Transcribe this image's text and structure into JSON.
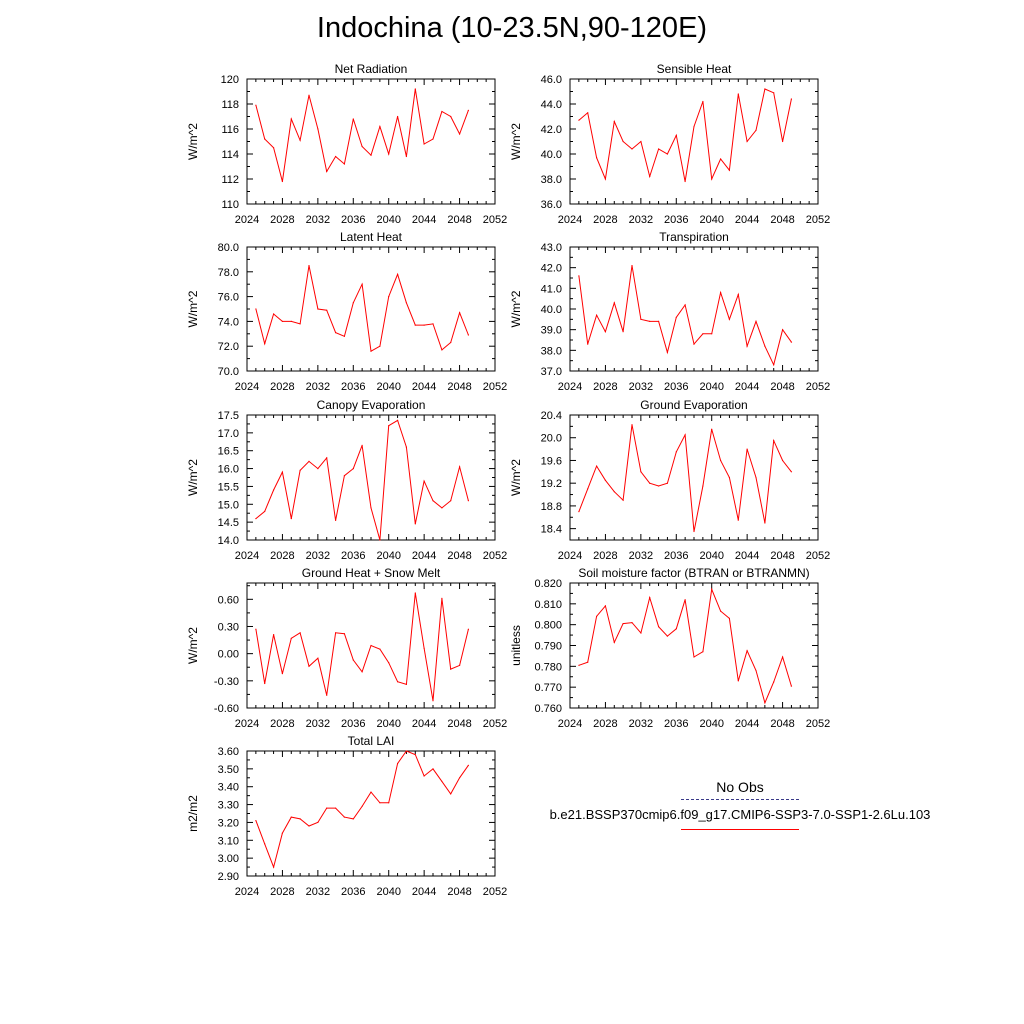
{
  "title": "Indochina (10-23.5N,90-120E)",
  "legend": {
    "items": [
      {
        "label": "No Obs",
        "color": "#3a3a8a",
        "style": "dashed"
      },
      {
        "label": "b.e21.BSSP370cmip6.f09_g17.CMIP6-SSP3-7.0-SSP1-2.6Lu.103",
        "color": "#ff0000",
        "style": "solid"
      }
    ]
  },
  "chart_data": [
    {
      "type": "line",
      "title": "Net Radiation",
      "ylabel": "W/m^2",
      "xlim": [
        2024,
        2052
      ],
      "ylim": [
        110,
        120
      ],
      "xticks": [
        "2024",
        "2028",
        "2032",
        "2036",
        "2040",
        "2044",
        "2048",
        "2052"
      ],
      "yticks": [
        "110",
        "112",
        "114",
        "116",
        "118",
        "120"
      ],
      "series": [
        {
          "color": "#ff0000",
          "x": [
            2025,
            2026,
            2027,
            2028,
            2029,
            2030,
            2031,
            2032,
            2033,
            2034,
            2035,
            2036,
            2037,
            2038,
            2039,
            2040,
            2041,
            2042,
            2043,
            2044,
            2045,
            2046,
            2047,
            2048,
            2049
          ],
          "values": [
            117.9,
            115.2,
            114.5,
            111.8,
            116.8,
            115.1,
            118.7,
            116.0,
            112.6,
            113.8,
            113.2,
            116.8,
            114.6,
            113.9,
            116.2,
            114.0,
            117.0,
            113.8,
            119.2,
            114.8,
            115.2,
            117.4,
            117.0,
            115.6,
            117.5
          ]
        }
      ]
    },
    {
      "type": "line",
      "title": "Sensible Heat",
      "ylabel": "W/m^2",
      "xlim": [
        2024,
        2052
      ],
      "ylim": [
        36,
        46
      ],
      "xticks": [
        "2024",
        "2028",
        "2032",
        "2036",
        "2040",
        "2044",
        "2048",
        "2052"
      ],
      "yticks": [
        "36.0",
        "38.0",
        "40.0",
        "42.0",
        "44.0",
        "46.0"
      ],
      "series": [
        {
          "color": "#ff0000",
          "x": [
            2025,
            2026,
            2027,
            2028,
            2029,
            2030,
            2031,
            2032,
            2033,
            2034,
            2035,
            2036,
            2037,
            2038,
            2039,
            2040,
            2041,
            2042,
            2043,
            2044,
            2045,
            2046,
            2047,
            2048,
            2049
          ],
          "values": [
            42.7,
            43.3,
            39.7,
            38.0,
            42.6,
            41.0,
            40.4,
            41.0,
            38.2,
            40.4,
            40.0,
            41.5,
            37.8,
            42.2,
            44.2,
            38.0,
            39.6,
            38.7,
            44.8,
            41.0,
            41.9,
            45.2,
            44.9,
            41.0,
            44.4
          ]
        }
      ]
    },
    {
      "type": "line",
      "title": "Latent Heat",
      "ylabel": "W/m^2",
      "xlim": [
        2024,
        2052
      ],
      "ylim": [
        70,
        80
      ],
      "xticks": [
        "2024",
        "2028",
        "2032",
        "2036",
        "2040",
        "2044",
        "2048",
        "2052"
      ],
      "yticks": [
        "70.0",
        "72.0",
        "74.0",
        "76.0",
        "78.0",
        "80.0"
      ],
      "series": [
        {
          "color": "#ff0000",
          "x": [
            2025,
            2026,
            2027,
            2028,
            2029,
            2030,
            2031,
            2032,
            2033,
            2034,
            2035,
            2036,
            2037,
            2038,
            2039,
            2040,
            2041,
            2042,
            2043,
            2044,
            2045,
            2046,
            2047,
            2048,
            2049
          ],
          "values": [
            75.0,
            72.2,
            74.6,
            74.0,
            74.0,
            73.8,
            78.5,
            75.0,
            74.9,
            73.1,
            72.8,
            75.5,
            77.0,
            71.6,
            72.0,
            76.0,
            77.8,
            75.5,
            73.7,
            73.7,
            73.8,
            71.7,
            72.3,
            74.7,
            72.9
          ]
        }
      ]
    },
    {
      "type": "line",
      "title": "Transpiration",
      "ylabel": "W/m^2",
      "xlim": [
        2024,
        2052
      ],
      "ylim": [
        37,
        43
      ],
      "xticks": [
        "2024",
        "2028",
        "2032",
        "2036",
        "2040",
        "2044",
        "2048",
        "2052"
      ],
      "yticks": [
        "37.0",
        "38.0",
        "39.0",
        "40.0",
        "41.0",
        "42.0",
        "43.0"
      ],
      "series": [
        {
          "color": "#ff0000",
          "x": [
            2025,
            2026,
            2027,
            2028,
            2029,
            2030,
            2031,
            2032,
            2033,
            2034,
            2035,
            2036,
            2037,
            2038,
            2039,
            2040,
            2041,
            2042,
            2043,
            2044,
            2045,
            2046,
            2047,
            2048,
            2049
          ],
          "values": [
            41.6,
            38.3,
            39.7,
            38.9,
            40.3,
            38.9,
            42.1,
            39.5,
            39.4,
            39.4,
            37.9,
            39.6,
            40.2,
            38.3,
            38.8,
            38.8,
            40.8,
            39.5,
            40.7,
            38.2,
            39.4,
            38.2,
            37.3,
            39.0,
            38.4
          ]
        }
      ]
    },
    {
      "type": "line",
      "title": "Canopy Evaporation",
      "ylabel": "W/m^2",
      "xlim": [
        2024,
        2052
      ],
      "ylim": [
        14.0,
        17.5
      ],
      "xticks": [
        "2024",
        "2028",
        "2032",
        "2036",
        "2040",
        "2044",
        "2048",
        "2052"
      ],
      "yticks": [
        "14.0",
        "14.5",
        "15.0",
        "15.5",
        "16.0",
        "16.5",
        "17.0",
        "17.5"
      ],
      "series": [
        {
          "color": "#ff0000",
          "x": [
            2025,
            2026,
            2027,
            2028,
            2029,
            2030,
            2031,
            2032,
            2033,
            2034,
            2035,
            2036,
            2037,
            2038,
            2039,
            2040,
            2041,
            2042,
            2043,
            2044,
            2045,
            2046,
            2047,
            2048,
            2049
          ],
          "values": [
            14.6,
            14.8,
            15.4,
            15.9,
            14.6,
            15.95,
            16.2,
            16.0,
            16.3,
            14.55,
            15.8,
            16.0,
            16.65,
            14.9,
            14.0,
            17.2,
            17.35,
            16.6,
            14.45,
            15.65,
            15.1,
            14.9,
            15.1,
            16.05,
            15.1
          ]
        }
      ]
    },
    {
      "type": "line",
      "title": "Ground Evaporation",
      "ylabel": "W/m^2",
      "xlim": [
        2024,
        2052
      ],
      "ylim": [
        18.2,
        20.4
      ],
      "xticks": [
        "2024",
        "2028",
        "2032",
        "2036",
        "2040",
        "2044",
        "2048",
        "2052"
      ],
      "yticks": [
        "18.4",
        "18.8",
        "19.2",
        "19.6",
        "20.0",
        "20.4"
      ],
      "series": [
        {
          "color": "#ff0000",
          "x": [
            2025,
            2026,
            2027,
            2028,
            2029,
            2030,
            2031,
            2032,
            2033,
            2034,
            2035,
            2036,
            2037,
            2038,
            2039,
            2040,
            2041,
            2042,
            2043,
            2044,
            2045,
            2046,
            2047,
            2048,
            2049
          ],
          "values": [
            18.7,
            19.1,
            19.5,
            19.25,
            19.05,
            18.9,
            20.23,
            19.4,
            19.2,
            19.15,
            19.2,
            19.75,
            20.05,
            18.35,
            19.15,
            20.15,
            19.6,
            19.3,
            18.55,
            19.8,
            19.3,
            18.5,
            19.95,
            19.6,
            19.4
          ]
        }
      ]
    },
    {
      "type": "line",
      "title": "Ground Heat + Snow Melt",
      "ylabel": "W/m^2",
      "xlim": [
        2024,
        2052
      ],
      "ylim": [
        -0.6,
        0.78
      ],
      "xticks": [
        "2024",
        "2028",
        "2032",
        "2036",
        "2040",
        "2044",
        "2048",
        "2052"
      ],
      "yticks": [
        "-0.60",
        "-0.30",
        "0.00",
        "0.30",
        "0.60"
      ],
      "series": [
        {
          "color": "#ff0000",
          "x": [
            2025,
            2026,
            2027,
            2028,
            2029,
            2030,
            2031,
            2032,
            2033,
            2034,
            2035,
            2036,
            2037,
            2038,
            2039,
            2040,
            2041,
            2042,
            2043,
            2044,
            2045,
            2046,
            2047,
            2048,
            2049
          ],
          "values": [
            0.27,
            -0.33,
            0.21,
            -0.22,
            0.17,
            0.23,
            -0.14,
            -0.05,
            -0.46,
            0.23,
            0.22,
            -0.07,
            -0.2,
            0.09,
            0.05,
            -0.1,
            -0.31,
            -0.34,
            0.67,
            0.06,
            -0.52,
            0.61,
            -0.17,
            -0.13,
            0.27
          ]
        }
      ]
    },
    {
      "type": "line",
      "title": "Soil moisture factor (BTRAN or BTRANMN)",
      "ylabel": "unitless",
      "xlim": [
        2024,
        2052
      ],
      "ylim": [
        0.76,
        0.82
      ],
      "xticks": [
        "2024",
        "2028",
        "2032",
        "2036",
        "2040",
        "2044",
        "2048",
        "2052"
      ],
      "yticks": [
        "0.760",
        "0.770",
        "0.780",
        "0.790",
        "0.800",
        "0.810",
        "0.820"
      ],
      "series": [
        {
          "color": "#ff0000",
          "x": [
            2025,
            2026,
            2027,
            2028,
            2029,
            2030,
            2031,
            2032,
            2033,
            2034,
            2035,
            2036,
            2037,
            2038,
            2039,
            2040,
            2041,
            2042,
            2043,
            2044,
            2045,
            2046,
            2047,
            2048,
            2049
          ],
          "values": [
            0.7805,
            0.782,
            0.804,
            0.809,
            0.7915,
            0.8005,
            0.801,
            0.796,
            0.813,
            0.799,
            0.7945,
            0.798,
            0.812,
            0.7845,
            0.787,
            0.817,
            0.8065,
            0.803,
            0.773,
            0.7875,
            0.778,
            0.7625,
            0.7725,
            0.7845,
            0.7705
          ]
        }
      ]
    },
    {
      "type": "line",
      "title": "Total LAI",
      "ylabel": "m2/m2",
      "xlim": [
        2024,
        2052
      ],
      "ylim": [
        2.9,
        3.6
      ],
      "xticks": [
        "2024",
        "2028",
        "2032",
        "2036",
        "2040",
        "2044",
        "2048",
        "2052"
      ],
      "yticks": [
        "2.90",
        "3.00",
        "3.10",
        "3.20",
        "3.30",
        "3.40",
        "3.50",
        "3.60"
      ],
      "series": [
        {
          "color": "#ff0000",
          "x": [
            2025,
            2026,
            2027,
            2028,
            2029,
            2030,
            2031,
            2032,
            2033,
            2034,
            2035,
            2036,
            2037,
            2038,
            2039,
            2040,
            2041,
            2042,
            2043,
            2044,
            2045,
            2046,
            2047,
            2048,
            2049
          ],
          "values": [
            3.21,
            3.08,
            2.95,
            3.14,
            3.23,
            3.22,
            3.18,
            3.2,
            3.28,
            3.28,
            3.23,
            3.22,
            3.29,
            3.37,
            3.31,
            3.31,
            3.53,
            3.6,
            3.58,
            3.46,
            3.5,
            3.43,
            3.36,
            3.45,
            3.52
          ]
        }
      ]
    }
  ]
}
